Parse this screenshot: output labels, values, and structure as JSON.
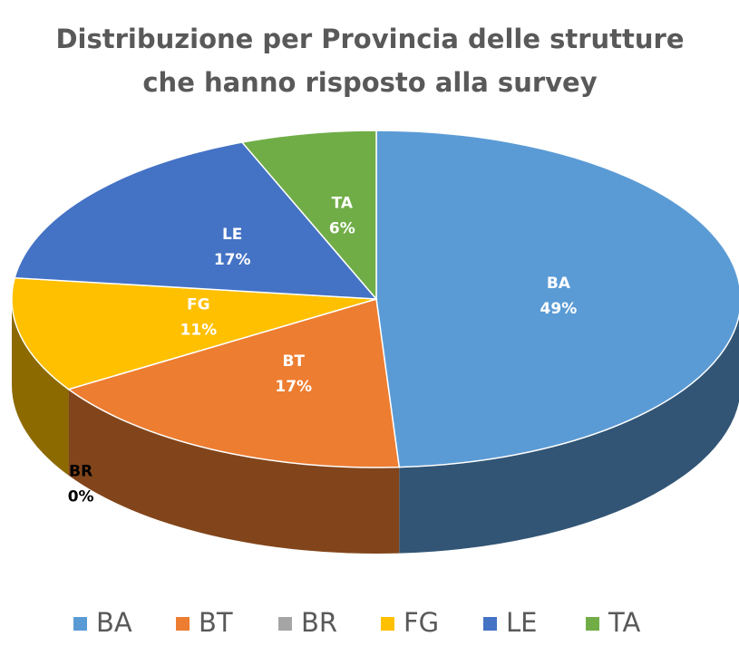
{
  "chart_data": {
    "type": "pie3d",
    "title": [
      "Distribuzione per Provincia delle strutture",
      "che hanno risposto alla survey"
    ],
    "categories": [
      "BA",
      "BT",
      "BR",
      "FG",
      "LE",
      "TA"
    ],
    "values": [
      49,
      17,
      0,
      11,
      17,
      6
    ],
    "value_labels": [
      "49%",
      "17%",
      "0%",
      "11%",
      "17%",
      "6%"
    ],
    "colors": [
      "#5b9bd5",
      "#ed7d31",
      "#a5a5a5",
      "#ffc000",
      "#4472c4",
      "#70ad47"
    ],
    "legend": "bottom"
  }
}
